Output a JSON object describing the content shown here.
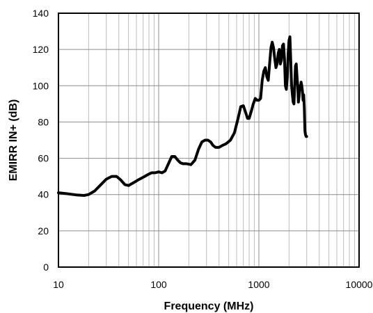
{
  "chart_data": {
    "type": "line",
    "title": "",
    "xlabel": "Frequency (MHz)",
    "ylabel": "EMIRR IN+ (dB)",
    "xscale": "log",
    "xlim": [
      10,
      10000
    ],
    "ylim": [
      0,
      140
    ],
    "x_ticks": [
      10,
      100,
      1000,
      10000
    ],
    "x_tick_labels": [
      "10",
      "100",
      "1000",
      "10000"
    ],
    "y_ticks": [
      0,
      20,
      40,
      60,
      80,
      100,
      120,
      140
    ],
    "y_tick_labels": [
      "0",
      "20",
      "40",
      "60",
      "80",
      "100",
      "120",
      "140"
    ],
    "grid": true,
    "line_color": "#000000",
    "series": [
      {
        "x": [
          10,
          12,
          15,
          18,
          20,
          23,
          26,
          30,
          34,
          38,
          42,
          46,
          50,
          56,
          62,
          70,
          78,
          85,
          92,
          100,
          108,
          116,
          125,
          135,
          145,
          155,
          165,
          175,
          190,
          210,
          230,
          250,
          270,
          290,
          310,
          330,
          350,
          370,
          400,
          430,
          470,
          520,
          570,
          620,
          660,
          700,
          740,
          770,
          800,
          840,
          880,
          920,
          960,
          1000,
          1040,
          1080,
          1120,
          1160,
          1200,
          1240,
          1280,
          1320,
          1360,
          1400,
          1440,
          1480,
          1520,
          1560,
          1600,
          1640,
          1680,
          1720,
          1760,
          1800,
          1840,
          1880,
          1920,
          1960,
          2000,
          2040,
          2080,
          2120,
          2160,
          2200,
          2240,
          2280,
          2320,
          2360,
          2400,
          2440,
          2480,
          2520,
          2560,
          2600,
          2640,
          2680,
          2720,
          2760,
          2800,
          2840,
          2880,
          2920,
          2960,
          3000
        ],
        "y": [
          41,
          40.5,
          39.8,
          39.5,
          40,
          42,
          45,
          48.5,
          50,
          50,
          48,
          45.5,
          45,
          46.5,
          48,
          49.5,
          51,
          52,
          52,
          52.5,
          52,
          53,
          57,
          61,
          61,
          59,
          57.5,
          57,
          57,
          56.5,
          59,
          65,
          69,
          70,
          70,
          69,
          67,
          66,
          66,
          67,
          68,
          70,
          74,
          82,
          88.5,
          89,
          85,
          82,
          82,
          86,
          90,
          93,
          92,
          92,
          93,
          103,
          108,
          110,
          105,
          103,
          112,
          121,
          124,
          121,
          115,
          110,
          112,
          118,
          120,
          112,
          114,
          122,
          123,
          115,
          100,
          98,
          105,
          118,
          125,
          127,
          114,
          100,
          95,
          91,
          90,
          100,
          111,
          112,
          105,
          100,
          91,
          94,
          100,
          98,
          102,
          100,
          97,
          92,
          95,
          88,
          75,
          73,
          72,
          72
        ]
      }
    ]
  }
}
